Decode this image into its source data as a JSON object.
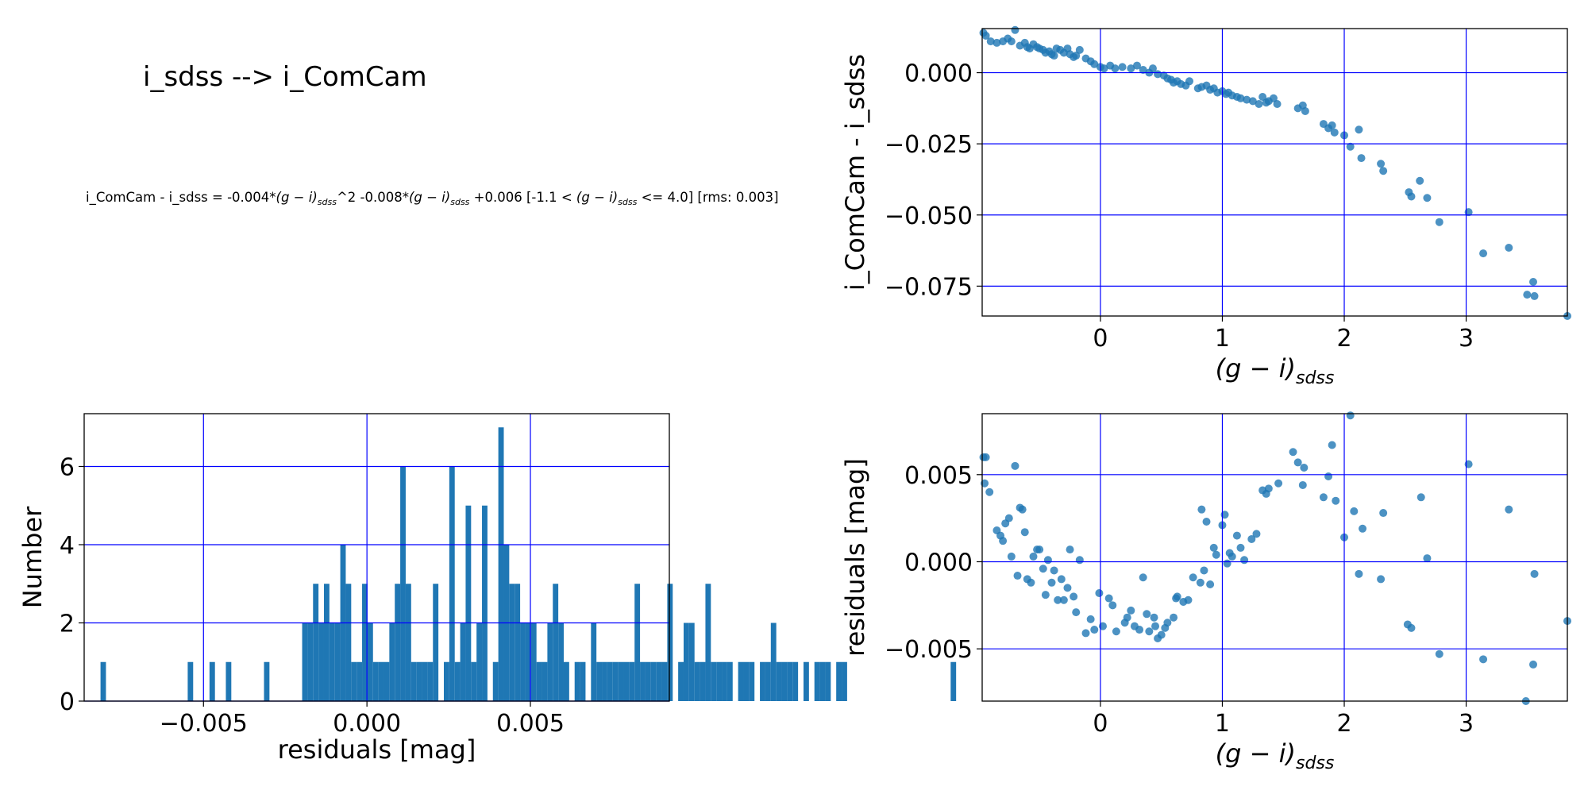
{
  "title": "i_sdss --> i_ComCam",
  "equation": {
    "p1": "i_ComCam - i_sdss = -0.004*",
    "p2": "^2 -0.008*",
    "p3": " +0.006  [-1.1 < ",
    "p4": " <= 4.0]  [rms: 0.003]",
    "color_base": "(g − i)",
    "color_sub": "sdss"
  },
  "chart_data": [
    {
      "id": "scatter-top",
      "type": "scatter",
      "xlabel": {
        "base": "(g − i)",
        "sub": "sdss"
      },
      "ylabel": "i_ComCam - i_sdss",
      "xlim": [
        -0.97,
        3.83
      ],
      "ylim": [
        -0.0855,
        0.0155
      ],
      "xticks": [
        0,
        1,
        2,
        3
      ],
      "xtick_labels": [
        "0",
        "1",
        "2",
        "3"
      ],
      "yticks": [
        0.0,
        -0.025,
        -0.05,
        -0.075
      ],
      "ytick_labels": [
        "0.000",
        "−0.025",
        "−0.050",
        "−0.075"
      ],
      "grid": true,
      "x": [
        -0.96,
        -0.94,
        -0.9,
        -0.85,
        -0.8,
        -0.76,
        -0.73,
        -0.7,
        -0.66,
        -0.62,
        -0.6,
        -0.58,
        -0.55,
        -0.52,
        -0.5,
        -0.47,
        -0.45,
        -0.42,
        -0.4,
        -0.38,
        -0.36,
        -0.33,
        -0.3,
        -0.27,
        -0.25,
        -0.22,
        -0.2,
        -0.17,
        -0.12,
        -0.08,
        -0.05,
        0.0,
        0.03,
        0.08,
        0.12,
        0.18,
        0.25,
        0.3,
        0.35,
        0.4,
        0.43,
        0.47,
        0.52,
        0.55,
        0.58,
        0.6,
        0.63,
        0.66,
        0.7,
        0.73,
        0.8,
        0.83,
        0.87,
        0.9,
        0.93,
        0.96,
        1.0,
        1.03,
        1.05,
        1.08,
        1.12,
        1.15,
        1.2,
        1.25,
        1.3,
        1.33,
        1.36,
        1.38,
        1.42,
        1.45,
        1.62,
        1.66,
        1.68,
        1.83,
        1.87,
        1.9,
        1.92,
        2.0,
        2.05,
        2.12,
        2.14,
        2.3,
        2.32,
        2.53,
        2.55,
        2.62,
        2.68,
        2.78,
        3.02,
        3.14,
        3.35,
        3.5,
        3.55,
        3.56,
        3.83
      ],
      "y": [
        0.014,
        0.013,
        0.011,
        0.0105,
        0.011,
        0.012,
        0.011,
        0.015,
        0.0095,
        0.0105,
        0.009,
        0.0085,
        0.01,
        0.009,
        0.0085,
        0.008,
        0.007,
        0.0075,
        0.0065,
        0.006,
        0.0085,
        0.008,
        0.007,
        0.0085,
        0.0065,
        0.0055,
        0.006,
        0.008,
        0.005,
        0.004,
        0.003,
        0.002,
        0.0015,
        0.0025,
        0.0015,
        0.002,
        0.0015,
        0.0025,
        0.001,
        0.0,
        0.0015,
        -0.0005,
        -0.001,
        -0.002,
        -0.0025,
        -0.0035,
        -0.003,
        -0.004,
        -0.0045,
        -0.003,
        -0.0055,
        -0.005,
        -0.0045,
        -0.006,
        -0.0055,
        -0.007,
        -0.0065,
        -0.0075,
        -0.007,
        -0.008,
        -0.0085,
        -0.009,
        -0.0095,
        -0.01,
        -0.011,
        -0.0085,
        -0.0105,
        -0.01,
        -0.009,
        -0.011,
        -0.0125,
        -0.0115,
        -0.0135,
        -0.018,
        -0.0195,
        -0.0185,
        -0.021,
        -0.022,
        -0.026,
        -0.02,
        -0.03,
        -0.032,
        -0.0345,
        -0.042,
        -0.0435,
        -0.038,
        -0.044,
        -0.0525,
        -0.049,
        -0.0635,
        -0.0615,
        -0.078,
        -0.0735,
        -0.0785,
        -0.0855
      ]
    },
    {
      "id": "histogram",
      "type": "bar",
      "xlabel": "residuals [mag]",
      "ylabel": "Number",
      "xlim": [
        -0.00865,
        0.00925
      ],
      "ylim": [
        0,
        7.35
      ],
      "xticks": [
        -0.005,
        0.0,
        0.005
      ],
      "xtick_labels": [
        "−0.005",
        "0.000",
        "0.005"
      ],
      "yticks": [
        0,
        2,
        4,
        6
      ],
      "ytick_labels": [
        "0",
        "2",
        "4",
        "6"
      ],
      "grid": true,
      "bin_start": -0.00815,
      "bin_width": 0.0001667,
      "counts": [
        1,
        0,
        0,
        0,
        0,
        0,
        0,
        0,
        0,
        0,
        0,
        0,
        0,
        0,
        0,
        0,
        1,
        0,
        0,
        0,
        1,
        0,
        0,
        1,
        0,
        0,
        0,
        0,
        0,
        0,
        1,
        0,
        0,
        0,
        0,
        0,
        0,
        2,
        2,
        3,
        2,
        3,
        2,
        2,
        4,
        3,
        1,
        1,
        3,
        2,
        1,
        1,
        1,
        2,
        3,
        6,
        3,
        1,
        1,
        1,
        1,
        3,
        0,
        1,
        6,
        1,
        2,
        5,
        1,
        2,
        5,
        0,
        1,
        7,
        4,
        3,
        3,
        2,
        2,
        2,
        1,
        1,
        2,
        3,
        2,
        1,
        0,
        1,
        1,
        0,
        2,
        1,
        1,
        1,
        1,
        1,
        1,
        1,
        3,
        1,
        1,
        1,
        1,
        1,
        3,
        0,
        1,
        2,
        2,
        1,
        1,
        3,
        1,
        1,
        1,
        1,
        0,
        1,
        1,
        1,
        0,
        1,
        1,
        2,
        1,
        1,
        1,
        1,
        0,
        1,
        0,
        1,
        1,
        1,
        0,
        1,
        1,
        0,
        0,
        0,
        0,
        0,
        0,
        0,
        0,
        0,
        0,
        0,
        0,
        0,
        0,
        0,
        0,
        0,
        0,
        0,
        1
      ]
    },
    {
      "id": "scatter-residuals",
      "type": "scatter",
      "xlabel": {
        "base": "(g − i)",
        "sub": "sdss"
      },
      "ylabel": "residuals [mag]",
      "xlim": [
        -0.97,
        3.83
      ],
      "ylim": [
        -0.008,
        0.0085
      ],
      "xticks": [
        0,
        1,
        2,
        3
      ],
      "xtick_labels": [
        "0",
        "1",
        "2",
        "3"
      ],
      "yticks": [
        0.005,
        0.0,
        -0.005
      ],
      "ytick_labels": [
        "0.005",
        "0.000",
        "−0.005"
      ],
      "grid": true,
      "x": [
        -0.96,
        -0.95,
        -0.94,
        -0.91,
        -0.85,
        -0.82,
        -0.8,
        -0.78,
        -0.75,
        -0.73,
        -0.7,
        -0.68,
        -0.66,
        -0.64,
        -0.62,
        -0.6,
        -0.57,
        -0.55,
        -0.52,
        -0.5,
        -0.47,
        -0.45,
        -0.43,
        -0.4,
        -0.38,
        -0.35,
        -0.32,
        -0.3,
        -0.27,
        -0.25,
        -0.22,
        -0.2,
        -0.17,
        -0.12,
        -0.08,
        -0.05,
        -0.01,
        0.02,
        0.07,
        0.1,
        0.13,
        0.2,
        0.22,
        0.25,
        0.28,
        0.32,
        0.35,
        0.38,
        0.4,
        0.44,
        0.45,
        0.47,
        0.5,
        0.53,
        0.55,
        0.6,
        0.62,
        0.63,
        0.68,
        0.72,
        0.76,
        0.82,
        0.83,
        0.85,
        0.87,
        0.9,
        0.93,
        0.95,
        1.0,
        1.02,
        1.04,
        1.06,
        1.08,
        1.12,
        1.15,
        1.18,
        1.24,
        1.28,
        1.33,
        1.36,
        1.38,
        1.46,
        1.58,
        1.62,
        1.66,
        1.67,
        1.83,
        1.87,
        1.9,
        1.93,
        2.0,
        2.05,
        2.08,
        2.12,
        2.15,
        2.3,
        2.32,
        2.52,
        2.55,
        2.63,
        2.68,
        2.78,
        3.02,
        3.14,
        3.35,
        3.49,
        3.55,
        3.56,
        3.83
      ],
      "y": [
        0.006,
        0.0045,
        0.006,
        0.004,
        0.0018,
        0.0015,
        0.0012,
        0.0022,
        0.0025,
        0.0003,
        0.0055,
        -0.0008,
        0.0031,
        0.003,
        0.0017,
        -0.001,
        -0.0012,
        0.0003,
        0.0007,
        0.0007,
        -0.0004,
        -0.0019,
        0.0001,
        -0.0012,
        -0.0005,
        -0.0022,
        -0.001,
        -0.0022,
        -0.0015,
        0.0007,
        -0.002,
        -0.0029,
        0.0001,
        -0.0041,
        -0.0033,
        -0.0039,
        -0.0018,
        -0.0037,
        -0.0021,
        -0.0025,
        -0.004,
        -0.0035,
        -0.0032,
        -0.0028,
        -0.0037,
        -0.0039,
        -0.0009,
        -0.003,
        -0.004,
        -0.0032,
        -0.0037,
        -0.0044,
        -0.0042,
        -0.0038,
        -0.0035,
        -0.0032,
        -0.0021,
        -0.002,
        -0.0023,
        -0.0022,
        -0.0009,
        -0.0012,
        0.003,
        -0.0005,
        0.0023,
        -0.0013,
        0.0008,
        0.0004,
        0.0021,
        0.0027,
        -0.0001,
        0.0005,
        0.0003,
        0.0015,
        0.0008,
        0.0001,
        0.0013,
        0.0016,
        0.0041,
        0.0039,
        0.0042,
        0.0045,
        0.0063,
        0.0057,
        0.0044,
        0.0054,
        0.0037,
        0.0049,
        0.0067,
        0.0035,
        0.0014,
        0.0084,
        0.0029,
        -0.0007,
        0.0019,
        -0.001,
        0.0028,
        -0.0036,
        -0.0038,
        0.0037,
        0.0002,
        -0.0053,
        0.0056,
        -0.0056,
        0.003,
        -0.008,
        -0.0059,
        -0.0007,
        -0.0034
      ]
    }
  ]
}
